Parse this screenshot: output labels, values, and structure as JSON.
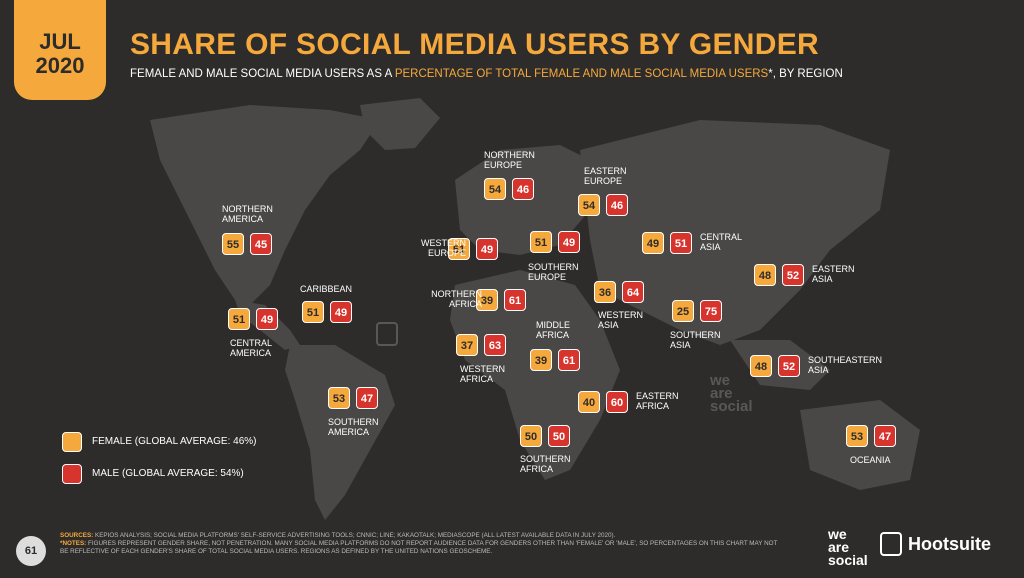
{
  "header": {
    "month": "JUL",
    "year": "2020",
    "title": "SHARE OF SOCIAL MEDIA USERS BY GENDER",
    "subtitle_pre": "FEMALE AND MALE SOCIAL MEDIA USERS AS A ",
    "subtitle_highlight": "PERCENTAGE OF TOTAL FEMALE AND MALE SOCIAL MEDIA USERS",
    "subtitle_post": "*, BY REGION"
  },
  "colors": {
    "female": "#f5a93c",
    "male": "#d8342e",
    "background": "#2e2c2b",
    "land": "#4a4847"
  },
  "legend": {
    "female": "FEMALE (GLOBAL AVERAGE: 46%)",
    "male": "MALE (GLOBAL AVERAGE: 54%)"
  },
  "chart_data": {
    "type": "table",
    "title": "SHARE OF SOCIAL MEDIA USERS BY GENDER",
    "series_names": [
      "FEMALE",
      "MALE"
    ],
    "regions": [
      {
        "name": "NORTHERN AMERICA",
        "female": 55,
        "male": 45
      },
      {
        "name": "CENTRAL AMERICA",
        "female": 51,
        "male": 49
      },
      {
        "name": "CARIBBEAN",
        "female": 51,
        "male": 49
      },
      {
        "name": "SOUTHERN AMERICA",
        "female": 53,
        "male": 47
      },
      {
        "name": "NORTHERN EUROPE",
        "female": 54,
        "male": 46
      },
      {
        "name": "WESTERN EUROPE",
        "female": 51,
        "male": 49
      },
      {
        "name": "SOUTHERN EUROPE",
        "female": 51,
        "male": 49
      },
      {
        "name": "EASTERN EUROPE",
        "female": 54,
        "male": 46
      },
      {
        "name": "NORTHERN AFRICA",
        "female": 39,
        "male": 61
      },
      {
        "name": "WESTERN AFRICA",
        "female": 37,
        "male": 63
      },
      {
        "name": "MIDDLE AFRICA",
        "female": 39,
        "male": 61
      },
      {
        "name": "EASTERN AFRICA",
        "female": 40,
        "male": 60
      },
      {
        "name": "SOUTHERN AFRICA",
        "female": 50,
        "male": 50
      },
      {
        "name": "WESTERN ASIA",
        "female": 36,
        "male": 64
      },
      {
        "name": "CENTRAL ASIA",
        "female": 49,
        "male": 51
      },
      {
        "name": "SOUTHERN ASIA",
        "female": 25,
        "male": 75
      },
      {
        "name": "EASTERN ASIA",
        "female": 48,
        "male": 52
      },
      {
        "name": "SOUTHEASTERN ASIA",
        "female": 48,
        "male": 52
      },
      {
        "name": "OCEANIA",
        "female": 53,
        "male": 47
      }
    ]
  },
  "footer": {
    "sources_label": "SOURCES:",
    "sources": " KEPIOS ANALYSIS; SOCIAL MEDIA PLATFORMS' SELF-SERVICE ADVERTISING TOOLS; CNNIC; LINE; KAKAOTALK; MEDIASCOPE (ALL LATEST AVAILABLE DATA IN JULY 2020).",
    "notes_label": "*NOTES:",
    "notes": " FIGURES REPRESENT GENDER SHARE, NOT PENETRATION. MANY SOCIAL MEDIA PLATFORMS DO NOT REPORT AUDIENCE DATA FOR GENDERS OTHER THAN 'FEMALE' OR 'MALE', SO PERCENTAGES ON THIS CHART MAY NOT BE REFLECTIVE OF EACH GENDER'S SHARE OF TOTAL SOCIAL MEDIA USERS. REGIONS AS DEFINED BY THE UNITED NATIONS GEOSCHEME.",
    "page_number": "61"
  },
  "brand": {
    "wearesocial": [
      "we",
      "are",
      "social"
    ],
    "hootsuite": "Hootsuite"
  }
}
